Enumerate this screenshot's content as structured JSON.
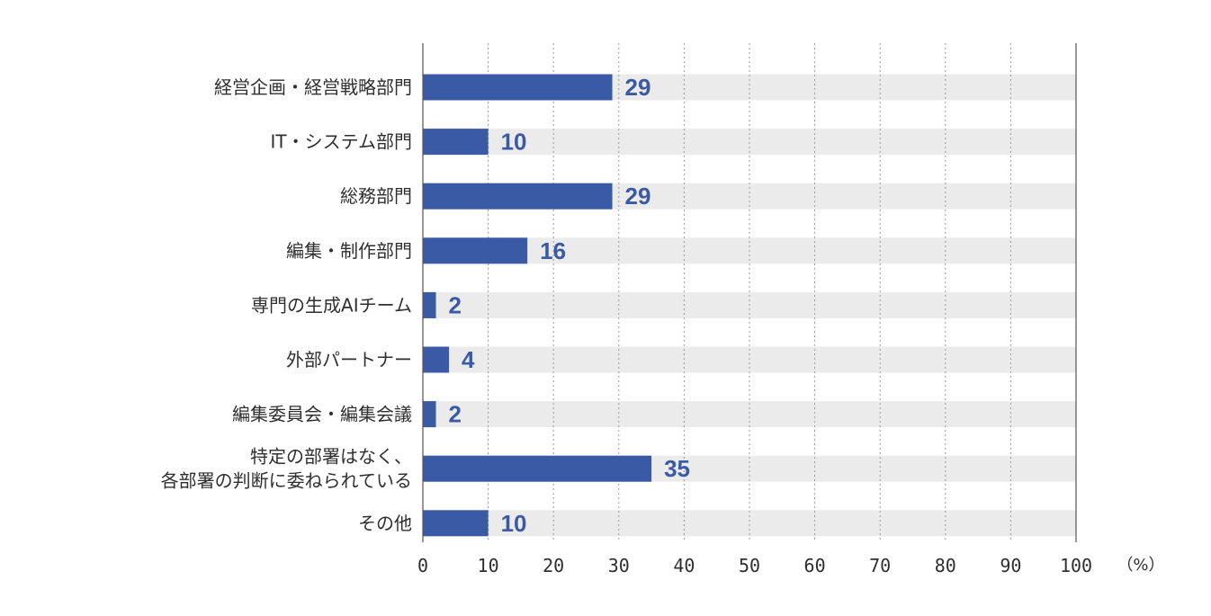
{
  "chart_data": {
    "type": "bar",
    "orientation": "horizontal",
    "categories": [
      [
        "経営企画・経営戦略部門"
      ],
      [
        "IT・システム部門"
      ],
      [
        "総務部門"
      ],
      [
        "編集・制作部門"
      ],
      [
        "専門の生成AIチーム"
      ],
      [
        "外部パートナー"
      ],
      [
        "編集委員会・編集会議"
      ],
      [
        "特定の部署はなく、",
        "各部署の判断に委ねられている"
      ],
      [
        "その他"
      ]
    ],
    "values": [
      29,
      10,
      29,
      16,
      2,
      4,
      2,
      35,
      10
    ],
    "xlim": [
      0,
      100
    ],
    "x_ticks": [
      "0",
      "10",
      "20",
      "30",
      "40",
      "50",
      "60",
      "70",
      "80",
      "90",
      "100"
    ],
    "unit_label": "（%）",
    "grid": "vertical dotted",
    "colors": {
      "bar": "#3b5aa5",
      "track": "#ebebeb",
      "value_text": "#3b5aa5",
      "grid": "#9a9a9a",
      "axis": "#555555"
    }
  }
}
